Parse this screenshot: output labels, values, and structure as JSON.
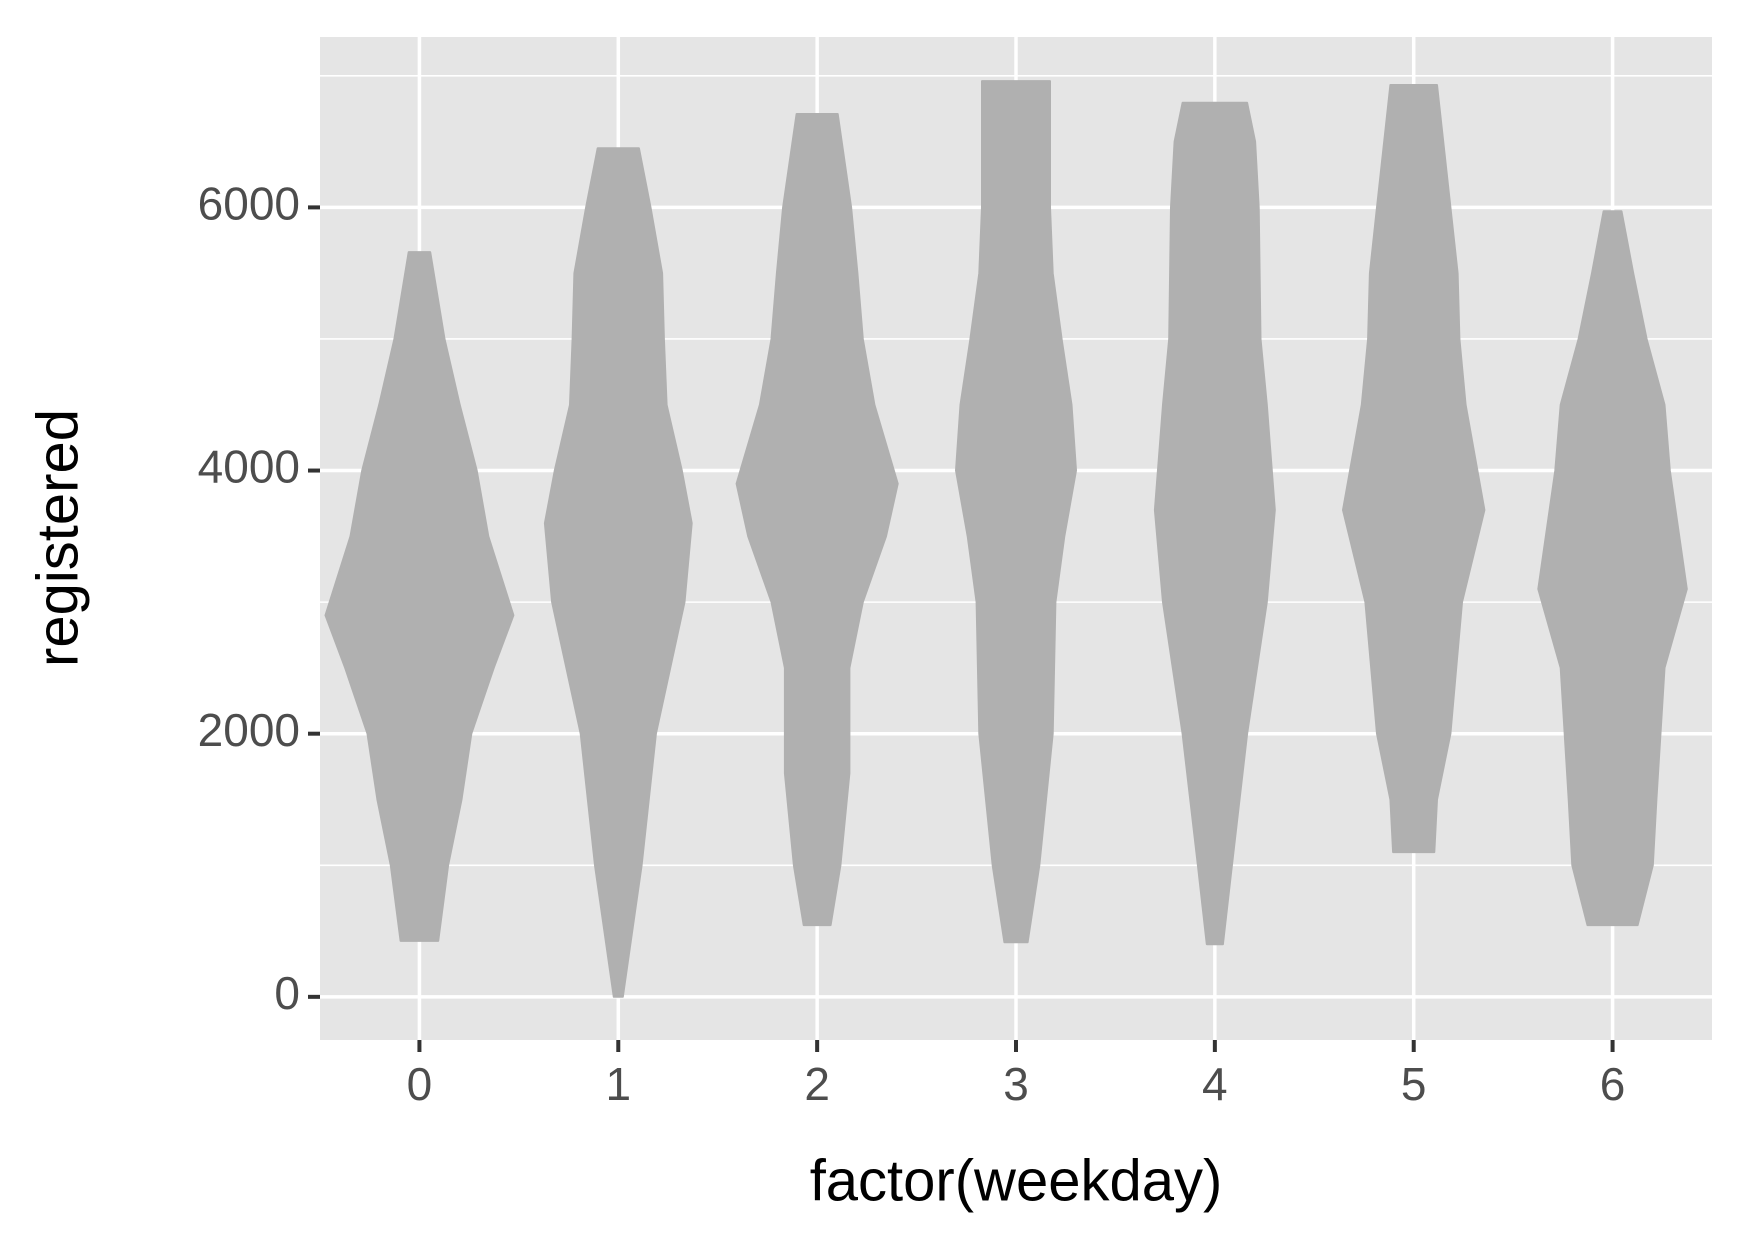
{
  "chart_data": {
    "type": "violin",
    "x_label": "factor(weekday)",
    "y_label": "registered",
    "categories": [
      "0",
      "1",
      "2",
      "3",
      "4",
      "5",
      "6"
    ],
    "color": "#b0b0b0",
    "violins": [
      {
        "y": [
          425,
          1000,
          1500,
          2000,
          2500,
          2900,
          3500,
          4000,
          4500,
          5000,
          5660
        ],
        "width": [
          0.21,
          0.32,
          0.47,
          0.58,
          0.83,
          1.05,
          0.77,
          0.64,
          0.45,
          0.28,
          0.12
        ]
      },
      {
        "y": [
          0,
          1000,
          2000,
          2500,
          3000,
          3600,
          4000,
          4500,
          5000,
          5500,
          6000,
          6450
        ],
        "width": [
          0.05,
          0.26,
          0.42,
          0.58,
          0.74,
          0.82,
          0.71,
          0.54,
          0.51,
          0.49,
          0.36,
          0.23
        ]
      },
      {
        "y": [
          545,
          1000,
          1700,
          2500,
          3000,
          3500,
          3900,
          4500,
          5000,
          5500,
          6000,
          6710
        ],
        "width": [
          0.15,
          0.26,
          0.36,
          0.36,
          0.51,
          0.77,
          0.9,
          0.64,
          0.51,
          0.45,
          0.38,
          0.23
        ]
      },
      {
        "y": [
          415,
          1000,
          2000,
          3000,
          3500,
          4000,
          4500,
          5000,
          5500,
          6000,
          6960
        ],
        "width": [
          0.13,
          0.26,
          0.41,
          0.44,
          0.54,
          0.67,
          0.62,
          0.51,
          0.41,
          0.38,
          0.38
        ]
      },
      {
        "y": [
          400,
          1000,
          2000,
          3000,
          3700,
          4500,
          5000,
          6000,
          6500,
          6795
        ],
        "width": [
          0.09,
          0.19,
          0.36,
          0.58,
          0.67,
          0.58,
          0.51,
          0.49,
          0.45,
          0.36
        ]
      },
      {
        "y": [
          1100,
          1500,
          2000,
          3000,
          3700,
          4500,
          5000,
          5500,
          6000,
          6930
        ],
        "width": [
          0.23,
          0.26,
          0.41,
          0.54,
          0.79,
          0.58,
          0.51,
          0.49,
          0.41,
          0.26
        ]
      },
      {
        "y": [
          545,
          1000,
          1500,
          2500,
          3100,
          4000,
          4500,
          5000,
          5500,
          5970
        ],
        "width": [
          0.28,
          0.45,
          0.49,
          0.58,
          0.83,
          0.64,
          0.58,
          0.38,
          0.23,
          0.1
        ]
      }
    ],
    "ylim": [
      -328,
      7295
    ],
    "yticks": [
      0,
      2000,
      4000,
      6000
    ],
    "yminor": [
      1000,
      3000,
      5000,
      7000
    ],
    "grid": true
  }
}
